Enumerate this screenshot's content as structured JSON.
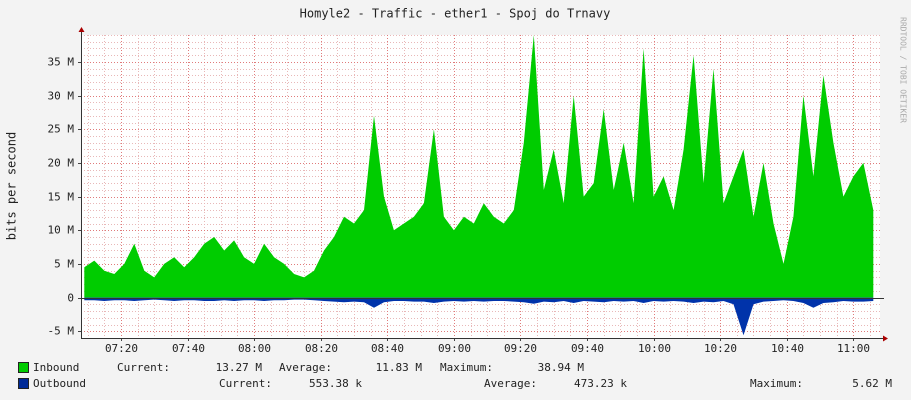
{
  "chart_data": {
    "type": "area",
    "title": "Homyle2 - Traffic - ether1 - Spoj do Trnavy",
    "y_label": "bits per second",
    "watermark": "RRDTOOL / TOBI OETIKER",
    "x": [
      "07:09",
      "07:12",
      "07:15",
      "07:18",
      "07:21",
      "07:24",
      "07:27",
      "07:30",
      "07:33",
      "07:36",
      "07:39",
      "07:42",
      "07:45",
      "07:48",
      "07:51",
      "07:54",
      "07:57",
      "08:00",
      "08:03",
      "08:06",
      "08:09",
      "08:12",
      "08:15",
      "08:18",
      "08:21",
      "08:24",
      "08:27",
      "08:30",
      "08:33",
      "08:36",
      "08:39",
      "08:42",
      "08:45",
      "08:48",
      "08:51",
      "08:54",
      "08:57",
      "09:00",
      "09:03",
      "09:06",
      "09:09",
      "09:12",
      "09:15",
      "09:18",
      "09:21",
      "09:24",
      "09:27",
      "09:30",
      "09:33",
      "09:36",
      "09:39",
      "09:42",
      "09:45",
      "09:48",
      "09:51",
      "09:54",
      "09:57",
      "10:00",
      "10:03",
      "10:06",
      "10:09",
      "10:12",
      "10:15",
      "10:18",
      "10:21",
      "10:24",
      "10:27",
      "10:30",
      "10:33",
      "10:36",
      "10:39",
      "10:42",
      "10:45",
      "10:48",
      "10:51",
      "10:54",
      "10:57",
      "11:00",
      "11:03",
      "11:06"
    ],
    "series": [
      {
        "name": "Inbound",
        "color": "#00cc00",
        "legend_color": "#00cc00",
        "values": [
          4.5,
          5.5,
          4,
          3.5,
          5,
          8,
          4,
          3,
          5,
          6,
          4.5,
          6,
          8,
          9,
          7,
          8.5,
          6,
          5,
          8,
          6,
          5,
          3.5,
          3,
          4,
          7,
          9,
          12,
          11,
          13,
          27,
          15,
          10,
          11,
          12,
          14,
          25,
          12,
          10,
          12,
          11,
          14,
          12,
          11,
          13,
          23,
          39,
          16,
          22,
          14,
          30,
          15,
          17,
          28,
          16,
          23,
          14,
          37,
          15,
          18,
          13,
          22,
          36,
          17,
          34,
          14,
          18,
          22,
          12,
          20,
          11,
          5,
          12,
          30,
          18,
          33,
          23,
          15,
          18,
          20,
          13
        ],
        "stats": [
          "13.27 M",
          "11.83 M",
          "38.94 M"
        ]
      },
      {
        "name": "Outbound",
        "color": "#0033aa",
        "legend_color": "#002a97",
        "values": [
          -0.4,
          -0.4,
          -0.5,
          -0.4,
          -0.4,
          -0.5,
          -0.4,
          -0.3,
          -0.4,
          -0.5,
          -0.4,
          -0.4,
          -0.5,
          -0.5,
          -0.4,
          -0.5,
          -0.4,
          -0.4,
          -0.5,
          -0.4,
          -0.4,
          -0.3,
          -0.3,
          -0.4,
          -0.5,
          -0.6,
          -0.7,
          -0.6,
          -0.7,
          -1.5,
          -0.7,
          -0.5,
          -0.5,
          -0.6,
          -0.6,
          -0.8,
          -0.6,
          -0.5,
          -0.6,
          -0.5,
          -0.6,
          -0.5,
          -0.5,
          -0.6,
          -0.7,
          -0.9,
          -0.6,
          -0.7,
          -0.5,
          -0.8,
          -0.5,
          -0.6,
          -0.7,
          -0.5,
          -0.6,
          -0.5,
          -0.8,
          -0.5,
          -0.6,
          -0.5,
          -0.6,
          -0.8,
          -0.6,
          -0.7,
          -0.5,
          -1,
          -5.6,
          -1,
          -0.6,
          -0.5,
          -0.4,
          -0.5,
          -0.8,
          -1.5,
          -0.8,
          -0.7,
          -0.5,
          -0.6,
          -0.6,
          -0.5
        ],
        "stats": [
          "553.38 k",
          "473.23 k",
          "5.62 M"
        ]
      }
    ],
    "stat_labels": [
      "Current:",
      "Average:",
      "Maximum:"
    ],
    "xlim": [
      "07:08",
      "11:08"
    ],
    "xticks": [
      "07:20",
      "07:40",
      "08:00",
      "08:20",
      "08:40",
      "09:00",
      "09:20",
      "09:40",
      "10:00",
      "10:20",
      "10:40",
      "11:00"
    ],
    "ylim": [
      -6,
      39
    ],
    "yticks": [
      {
        "value": -5,
        "label": "-5 M"
      },
      0,
      {
        "value": 5,
        "label": "5 M"
      },
      {
        "value": 10,
        "label": "10 M"
      },
      {
        "value": 15,
        "label": "15 M"
      },
      {
        "value": 20,
        "label": "20 M"
      },
      {
        "value": 25,
        "label": "25 M"
      },
      {
        "value": 30,
        "label": "30 M"
      },
      {
        "value": 35,
        "label": "35 M"
      }
    ],
    "grid": true
  }
}
